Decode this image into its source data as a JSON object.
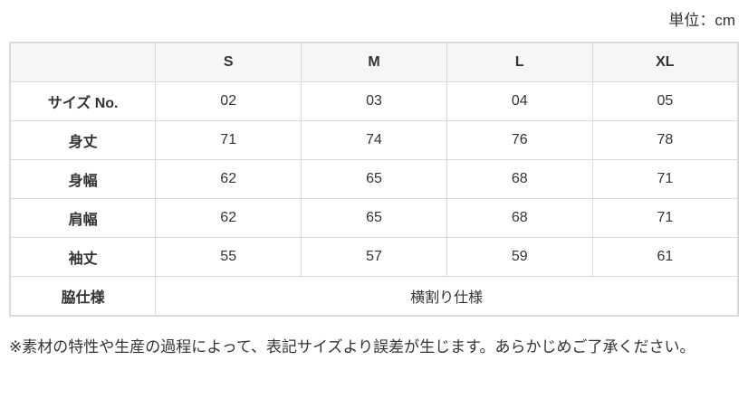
{
  "unit_label": "単位：cm",
  "table": {
    "columns": [
      "",
      "S",
      "M",
      "L",
      "XL"
    ],
    "rows": [
      {
        "label": "サイズ No.",
        "values": [
          "02",
          "03",
          "04",
          "05"
        ]
      },
      {
        "label": "身丈",
        "values": [
          "71",
          "74",
          "76",
          "78"
        ]
      },
      {
        "label": "身幅",
        "values": [
          "62",
          "65",
          "68",
          "71"
        ]
      },
      {
        "label": "肩幅",
        "values": [
          "62",
          "65",
          "68",
          "71"
        ]
      },
      {
        "label": "袖丈",
        "values": [
          "55",
          "57",
          "59",
          "61"
        ]
      },
      {
        "label": "脇仕様",
        "span_value": "横割り仕様"
      }
    ]
  },
  "note": "※素材の特性や生産の過程によって、表記サイズより誤差が生じます。あらかじめご了承ください。",
  "colors": {
    "border": "#d9d9d9",
    "header_bg": "#f6f6f6",
    "text": "#333333"
  }
}
